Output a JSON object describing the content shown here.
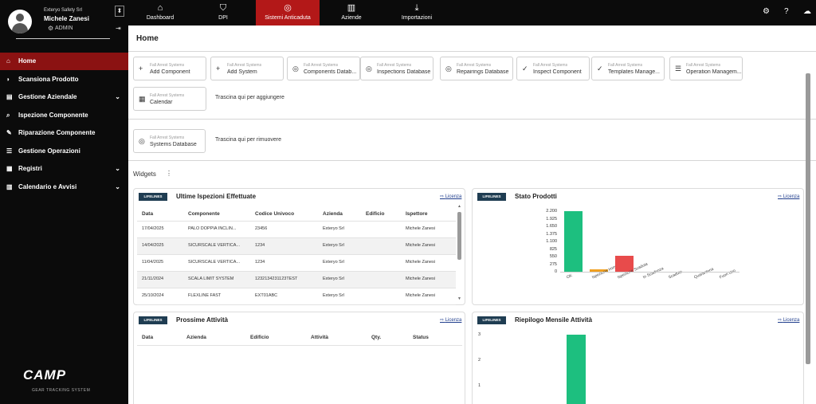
{
  "user": {
    "company": "Exteryo Safety Srl",
    "name": "Michele Zanesi",
    "role": "ADMIN"
  },
  "sidebar": {
    "items": [
      {
        "label": "Home",
        "icon": "home-icon",
        "glyph": "⌂",
        "chevron": ""
      },
      {
        "label": "Scansiona Prodotto",
        "icon": "rss-icon",
        "glyph": "◗",
        "chevron": ""
      },
      {
        "label": "Gestione Aziendale",
        "icon": "briefcase-icon",
        "glyph": "▤",
        "chevron": "⌄"
      },
      {
        "label": "Ispezione Componente",
        "icon": "search-icon",
        "glyph": "⌕",
        "chevron": ""
      },
      {
        "label": "Riparazione Componente",
        "icon": "wrench-icon",
        "glyph": "✎",
        "chevron": ""
      },
      {
        "label": "Gestione Operazioni",
        "icon": "list-icon",
        "glyph": "☰",
        "chevron": ""
      },
      {
        "label": "Registri",
        "icon": "database-icon",
        "glyph": "▦",
        "chevron": "⌄"
      },
      {
        "label": "Calendario e Avvisi",
        "icon": "calendar-icon",
        "glyph": "▥",
        "chevron": "⌄"
      }
    ],
    "logo": "CAMP",
    "logo_tagline": "GEAR TRACKING SYSTEM"
  },
  "topnav": {
    "tabs": [
      {
        "label": "Dashboard",
        "icon": "home-icon",
        "glyph": "⌂"
      },
      {
        "label": "DPI",
        "icon": "shield-icon",
        "glyph": "⛉"
      },
      {
        "label": "Sistemi Anticaduta",
        "icon": "lifebuoy-icon",
        "glyph": "◎"
      },
      {
        "label": "Aziende",
        "icon": "building-icon",
        "glyph": "▥"
      },
      {
        "label": "Importazioni",
        "icon": "download-icon",
        "glyph": "⤓"
      }
    ],
    "active_tab": "Sistemi Anticaduta"
  },
  "page": {
    "title": "Home"
  },
  "quick_actions": {
    "subtitle": "Fall Arrest Systems",
    "items": [
      {
        "label": "Add Component",
        "icon": "plus-icon",
        "glyph": "+"
      },
      {
        "label": "Add System",
        "icon": "plus-icon",
        "glyph": "+"
      },
      {
        "label": "Components Datab...",
        "icon": "lifebuoy-icon",
        "glyph": "◎"
      },
      {
        "label": "Inspections Database",
        "icon": "lifebuoy-icon",
        "glyph": "◎"
      },
      {
        "label": "Repairings Database",
        "icon": "lifebuoy-icon",
        "glyph": "◎"
      },
      {
        "label": "Inspect Component",
        "icon": "check-icon",
        "glyph": "✓"
      },
      {
        "label": "Templates Manage...",
        "icon": "check-icon",
        "glyph": "✓"
      },
      {
        "label": "Operation Managem...",
        "icon": "list-icon",
        "glyph": "☰"
      },
      {
        "label": "Calendar",
        "icon": "calendar-icon",
        "glyph": "▦"
      }
    ],
    "drop_add": "Trascina qui per aggiungere",
    "remove_item": {
      "label": "Systems Database",
      "icon": "lifebuoy-icon",
      "glyph": "◎"
    },
    "drop_remove": "Trascina qui per rimuovere"
  },
  "widgets": {
    "label": "Widgets",
    "badge": "LIFELINES",
    "license": "Licenza",
    "inspections": {
      "title": "Ultime Ispezioni Effettuate",
      "columns": [
        "Data",
        "Componente",
        "Codice Univoco",
        "Azienda",
        "Edificio",
        "Ispettore"
      ],
      "rows": [
        [
          "17/04/2025",
          "PALO DOPPIA INCLIN...",
          "23456",
          "Exteryo Srl",
          "",
          "Michele Zanesi"
        ],
        [
          "14/04/2025",
          "SICURSCALE VERTICA...",
          "1234",
          "Exteryo Srl",
          "",
          "Michele Zanesi"
        ],
        [
          "11/04/2025",
          "SICURSCALE VERTICA...",
          "1234",
          "Exteryo Srl",
          "",
          "Michele Zanesi"
        ],
        [
          "21/11/2024",
          "SCALA LIMIT SYSTEM",
          "1232134231123TEST",
          "Exteryo Srl",
          "",
          "Michele Zanesi"
        ],
        [
          "25/10/2024",
          "FLEXLINE FAST",
          "EXT01ABC",
          "Exteryo Srl",
          "",
          "Michele Zanesi"
        ]
      ]
    },
    "activities": {
      "title": "Prossime Attività",
      "columns": [
        "Data",
        "Azienda",
        "Edificio",
        "Attività",
        "Qty.",
        "Status"
      ]
    },
    "product_status": {
      "title": "Stato Prodotti"
    },
    "monthly": {
      "title": "Riepilogo Mensile Attività"
    }
  },
  "chart_data": [
    {
      "type": "bar",
      "title": "Stato Prodotti",
      "categories": [
        "OK",
        "Ispezione Imminente",
        "Ispezione Scaduta",
        "In Scadenza",
        "Scaduto",
        "Quarantena",
        "Fuori Uso"
      ],
      "values": [
        2200,
        80,
        580,
        0,
        0,
        0,
        0
      ],
      "colors": [
        "#1dbf7f",
        "#f0a020",
        "#e84b4b",
        "#1dbf7f",
        "#1dbf7f",
        "#1dbf7f",
        "#1dbf7f"
      ],
      "yticks": [
        0,
        275,
        550,
        825,
        1100,
        1375,
        1650,
        1925,
        2200
      ],
      "ytick_labels": [
        "0",
        "275",
        "550",
        "825",
        "1.100",
        "1.375",
        "1.650",
        "1.925",
        "2.200"
      ],
      "ylim": [
        0,
        2200
      ],
      "grid": false
    },
    {
      "type": "bar",
      "title": "Riepilogo Mensile Attività",
      "categories": [
        ""
      ],
      "values": [
        3
      ],
      "colors": [
        "#1dbf7f"
      ],
      "yticks": [
        1,
        2,
        3
      ],
      "ytick_labels": [
        "1",
        "2",
        "3"
      ],
      "ylim": [
        0,
        3
      ],
      "grid": false
    }
  ]
}
